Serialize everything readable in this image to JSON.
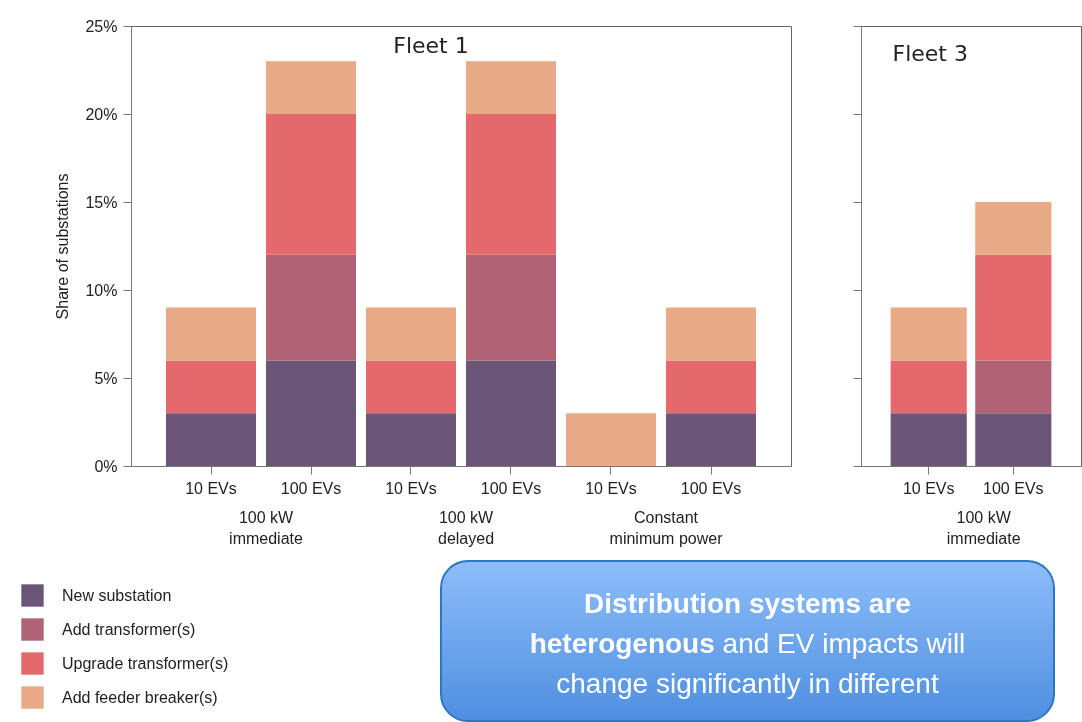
{
  "chart_data": [
    {
      "type": "bar",
      "title": "Fleet 1",
      "ylabel": "Share of substations",
      "stacked": true,
      "legend": "bottom left",
      "grid": false,
      "categories": [
        "10 EVs",
        "100 EVs",
        "10 EVs",
        "100 EVs",
        "10 EVs",
        "100 EVs"
      ],
      "series": [
        {
          "name": "New substation",
          "color": "#6b5677",
          "values": [
            3,
            6,
            3,
            6,
            null,
            3
          ]
        },
        {
          "name": "Add transformer(s)",
          "color": "#b16375",
          "values": [
            null,
            6,
            null,
            6,
            null,
            null
          ]
        },
        {
          "name": "Upgrade transformer(s)",
          "color": "#e4696d",
          "values": [
            3,
            8,
            3,
            8,
            null,
            3
          ]
        },
        {
          "name": "Add feeder breaker(s)",
          "color": "#e9aa87",
          "values": [
            3,
            3,
            3,
            3,
            3,
            3
          ]
        }
      ],
      "ylim": [
        0,
        25
      ],
      "yticks": [
        {
          "value": 0,
          "label": "0%"
        },
        {
          "value": 5,
          "label": "5%"
        },
        {
          "value": 10,
          "label": "10%"
        },
        {
          "value": 15,
          "label": "15%"
        },
        {
          "value": 20,
          "label": "20%"
        },
        {
          "value": 25,
          "label": "25%"
        }
      ],
      "annotations": [
        "100 kW\nimmediate",
        "100 kW\ndelayed",
        "Constant\nminimum power",
        "Distribution systems are heterogenous",
        "and EV impacts will change significantly in different"
      ]
    },
    {
      "type": "bar",
      "title": "Fleet 3",
      "stacked": true,
      "legend": false,
      "grid": false,
      "tick_labels": "x",
      "categories": [
        "10 EVs",
        "100 EVs"
      ],
      "series": [
        {
          "color": "#6b5677",
          "values": [
            3,
            3
          ]
        },
        {
          "color": "#b16375",
          "values": [
            null,
            3
          ]
        },
        {
          "color": "#e4696d",
          "values": [
            3,
            6
          ]
        },
        {
          "color": "#e9aa87",
          "values": [
            3,
            3
          ]
        }
      ],
      "ylim": [
        0,
        25
      ],
      "yticks": [
        {
          "value": 0,
          "label": null
        },
        {
          "value": 5,
          "label": null
        },
        {
          "value": 10,
          "label": null
        },
        {
          "value": 15,
          "label": null
        },
        {
          "value": 20,
          "label": null
        },
        {
          "value": 25,
          "label": null
        }
      ],
      "annotations": [
        "100 kW\nimmediate"
      ]
    }
  ]
}
